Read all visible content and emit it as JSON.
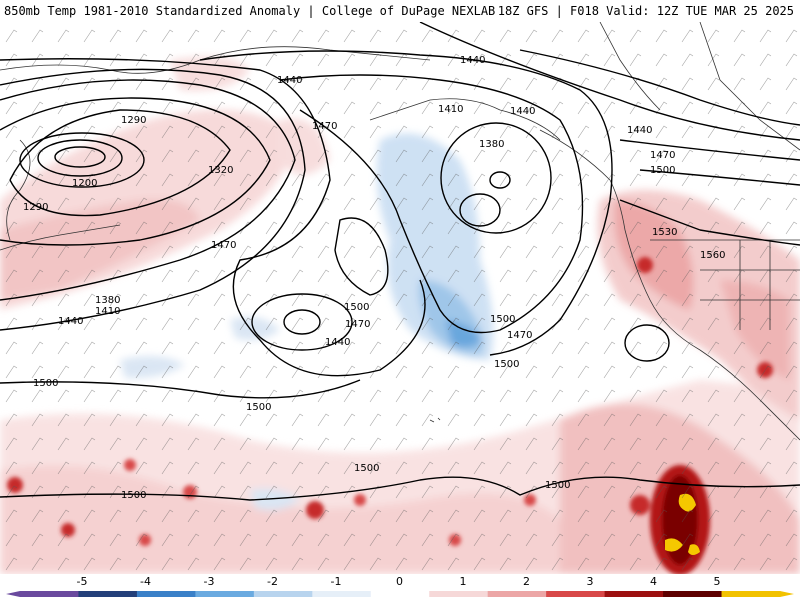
{
  "header": {
    "left_title": "850mb Temp 1981-2010 Standardized Anomaly | College of DuPage NEXLAB",
    "right_title": "18Z GFS | F018 Valid: 12Z TUE MAR 25 2025"
  },
  "contour_labels": [
    {
      "id": "h1440-a",
      "text": "1440"
    },
    {
      "id": "h1440-b",
      "text": "1440"
    },
    {
      "id": "h1440-c",
      "text": "1440"
    },
    {
      "id": "h1440-d",
      "text": "1440"
    },
    {
      "id": "h1440-e",
      "text": "1440"
    },
    {
      "id": "h1440-f",
      "text": "1440"
    },
    {
      "id": "h1410-a",
      "text": "1410"
    },
    {
      "id": "h1410-b",
      "text": "1410"
    },
    {
      "id": "h1470-a",
      "text": "1470"
    },
    {
      "id": "h1470-b",
      "text": "1470"
    },
    {
      "id": "h1470-c",
      "text": "1470"
    },
    {
      "id": "h1470-d",
      "text": "1470"
    },
    {
      "id": "h1470-e",
      "text": "1470"
    },
    {
      "id": "h1380-a",
      "text": "1380"
    },
    {
      "id": "h1380-b",
      "text": "1380"
    },
    {
      "id": "h1290-a",
      "text": "1290"
    },
    {
      "id": "h1290-b",
      "text": "1290"
    },
    {
      "id": "h1200",
      "text": "1200"
    },
    {
      "id": "h1320",
      "text": "1320"
    },
    {
      "id": "h1500-a",
      "text": "1500"
    },
    {
      "id": "h1500-b",
      "text": "1500"
    },
    {
      "id": "h1500-c",
      "text": "1500"
    },
    {
      "id": "h1500-d",
      "text": "1500"
    },
    {
      "id": "h1500-e",
      "text": "1500"
    },
    {
      "id": "h1500-f",
      "text": "1500"
    },
    {
      "id": "h1500-g",
      "text": "1500"
    },
    {
      "id": "h1500-h",
      "text": "1500"
    },
    {
      "id": "h1500-i",
      "text": "1500"
    },
    {
      "id": "h1530",
      "text": "1530"
    },
    {
      "id": "h1560",
      "text": "1560"
    }
  ],
  "colorbar": {
    "ticks": [
      "-5",
      "-4",
      "-3",
      "-2",
      "-1",
      "0",
      "1",
      "2",
      "3",
      "4",
      "5"
    ],
    "colors": [
      "#6a4a9e",
      "#23407a",
      "#3a80c8",
      "#6aaae0",
      "#b8d4ee",
      "#e6eff8",
      "#ffffff",
      "#f6d8d8",
      "#eca6a6",
      "#d84848",
      "#9c0f0f",
      "#5e0000",
      "#f2c200"
    ]
  }
}
